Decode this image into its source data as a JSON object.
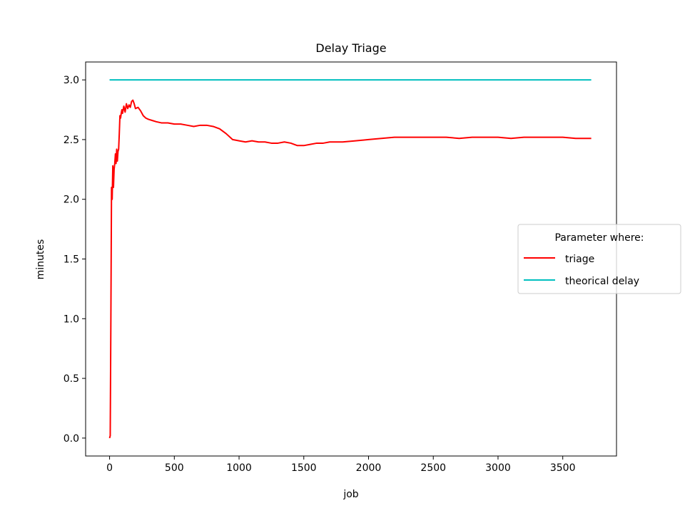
{
  "chart_data": {
    "type": "line",
    "title": "Delay Triage",
    "xlabel": "job",
    "ylabel": "minutes",
    "xlim": [
      -185,
      3915
    ],
    "ylim": [
      -0.15,
      3.15
    ],
    "xticks": [
      0,
      500,
      1000,
      1500,
      2000,
      2500,
      3000,
      3500
    ],
    "yticks": [
      0.0,
      0.5,
      1.0,
      1.5,
      2.0,
      2.5,
      3.0
    ],
    "ytick_format": 1,
    "grid": false,
    "legend": {
      "title": "Parameter where:",
      "placement": "center-right (outside)"
    },
    "series": [
      {
        "name": "triage",
        "color": "#ff0000",
        "x": [
          0,
          5,
          10,
          15,
          20,
          25,
          30,
          35,
          40,
          45,
          50,
          55,
          60,
          65,
          70,
          75,
          80,
          85,
          90,
          95,
          100,
          110,
          120,
          130,
          140,
          150,
          160,
          170,
          180,
          190,
          200,
          220,
          240,
          260,
          280,
          300,
          330,
          360,
          400,
          450,
          500,
          550,
          600,
          650,
          700,
          750,
          800,
          850,
          900,
          950,
          1000,
          1050,
          1100,
          1150,
          1200,
          1250,
          1300,
          1350,
          1400,
          1450,
          1500,
          1550,
          1600,
          1650,
          1700,
          1800,
          1900,
          2000,
          2100,
          2200,
          2300,
          2400,
          2500,
          2600,
          2700,
          2800,
          2900,
          3000,
          3100,
          3200,
          3300,
          3400,
          3500,
          3600,
          3700,
          3720
        ],
        "values": [
          0.0,
          0.02,
          1.0,
          2.1,
          2.0,
          2.28,
          2.1,
          2.25,
          2.3,
          2.38,
          2.3,
          2.42,
          2.32,
          2.4,
          2.42,
          2.55,
          2.7,
          2.68,
          2.72,
          2.75,
          2.72,
          2.78,
          2.73,
          2.8,
          2.76,
          2.79,
          2.77,
          2.82,
          2.83,
          2.8,
          2.76,
          2.77,
          2.74,
          2.7,
          2.68,
          2.67,
          2.66,
          2.65,
          2.64,
          2.64,
          2.63,
          2.63,
          2.62,
          2.61,
          2.62,
          2.62,
          2.61,
          2.59,
          2.55,
          2.5,
          2.49,
          2.48,
          2.49,
          2.48,
          2.48,
          2.47,
          2.47,
          2.48,
          2.47,
          2.45,
          2.45,
          2.46,
          2.47,
          2.47,
          2.48,
          2.48,
          2.49,
          2.5,
          2.51,
          2.52,
          2.52,
          2.52,
          2.52,
          2.52,
          2.51,
          2.52,
          2.52,
          2.52,
          2.51,
          2.52,
          2.52,
          2.52,
          2.52,
          2.51,
          2.51,
          2.51
        ]
      },
      {
        "name": "theorical delay",
        "color": "#00bfbf",
        "x": [
          0,
          3720
        ],
        "values": [
          3.0,
          3.0
        ]
      }
    ]
  }
}
